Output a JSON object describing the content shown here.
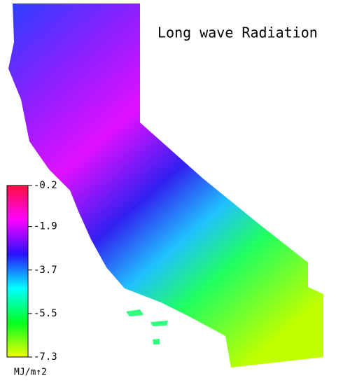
{
  "title": "Long wave Radiation",
  "colorbar": {
    "lim": [
      -7.3,
      -0.2
    ],
    "ticks": [
      -0.2,
      -1.9,
      -3.7,
      -5.5,
      -7.3
    ],
    "unit": "MJ/m↑2",
    "colors": [
      "#ff1040",
      "#ff00ff",
      "#2a10ff",
      "#00ffff",
      "#00ff20",
      "#f0ff00"
    ]
  }
}
